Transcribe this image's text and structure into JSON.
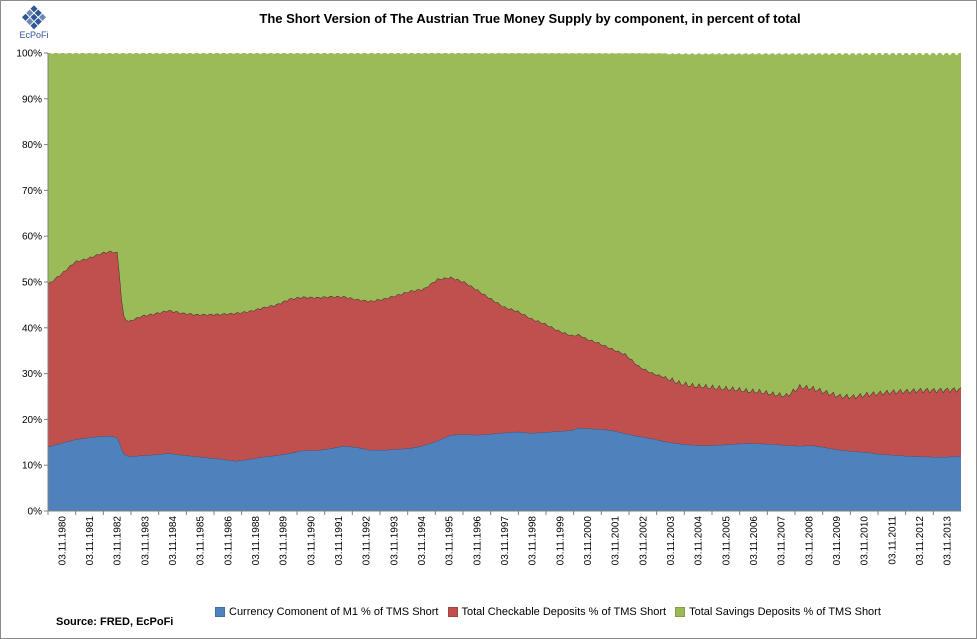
{
  "chart_data": {
    "type": "area",
    "stacked": true,
    "title": "The Short Version of The Austrian True Money Supply by component, in percent of total",
    "xlabel": "",
    "ylabel": "",
    "ylim": [
      0,
      100
    ],
    "y_tick_values": [
      0,
      10,
      20,
      30,
      40,
      50,
      60,
      70,
      80,
      90,
      100
    ],
    "y_tick_labels": [
      "0%",
      "10%",
      "20%",
      "30%",
      "40%",
      "50%",
      "60%",
      "70%",
      "80%",
      "90%",
      "100%"
    ],
    "x_tick_labels": [
      "03.11.1980",
      "03.11.1981",
      "03.11.1982",
      "03.11.1983",
      "03.11.1984",
      "03.11.1985",
      "03.11.1986",
      "03.11.1988",
      "03.11.1989",
      "03.11.1990",
      "03.11.1991",
      "03.11.1992",
      "03.11.1993",
      "03.11.1994",
      "03.11.1995",
      "03.11.1996",
      "03.11.1997",
      "03.11.1998",
      "03.11.1999",
      "03.11.2000",
      "03.11.2001",
      "03.11.2002",
      "03.11.2003",
      "03.11.2004",
      "03.11.2005",
      "03.11.2006",
      "03.11.2007",
      "03.11.2008",
      "03.11.2009",
      "03.11.2010",
      "03.11.2011",
      "03.11.2012",
      "03.11.2013"
    ],
    "x_start": 1980.0,
    "x_end": 2014.0,
    "series": [
      {
        "name": "Currency Comonent of M1 % of TMS Short",
        "color": "#4f81bd",
        "points": [
          [
            1980.0,
            14.0
          ],
          [
            1980.5,
            14.8
          ],
          [
            1981.0,
            15.6
          ],
          [
            1981.5,
            16.0
          ],
          [
            1982.0,
            16.3
          ],
          [
            1982.3,
            16.4
          ],
          [
            1982.6,
            16.0
          ],
          [
            1982.8,
            12.6
          ],
          [
            1983.0,
            11.9
          ],
          [
            1983.5,
            12.1
          ],
          [
            1984.0,
            12.3
          ],
          [
            1984.5,
            12.6
          ],
          [
            1985.0,
            12.2
          ],
          [
            1985.5,
            11.9
          ],
          [
            1986.0,
            11.6
          ],
          [
            1986.5,
            11.3
          ],
          [
            1987.0,
            10.9
          ],
          [
            1987.5,
            11.3
          ],
          [
            1988.0,
            11.8
          ],
          [
            1988.5,
            12.1
          ],
          [
            1989.0,
            12.6
          ],
          [
            1989.5,
            13.2
          ],
          [
            1990.0,
            13.2
          ],
          [
            1990.5,
            13.6
          ],
          [
            1991.0,
            14.2
          ],
          [
            1991.5,
            13.9
          ],
          [
            1992.0,
            13.3
          ],
          [
            1992.5,
            13.3
          ],
          [
            1993.0,
            13.5
          ],
          [
            1993.5,
            13.7
          ],
          [
            1994.0,
            14.3
          ],
          [
            1994.5,
            15.3
          ],
          [
            1995.0,
            16.6
          ],
          [
            1995.5,
            16.7
          ],
          [
            1996.0,
            16.6
          ],
          [
            1996.5,
            16.8
          ],
          [
            1997.0,
            17.1
          ],
          [
            1997.5,
            17.3
          ],
          [
            1998.0,
            17.0
          ],
          [
            1998.5,
            17.2
          ],
          [
            1999.0,
            17.4
          ],
          [
            1999.5,
            17.6
          ],
          [
            1999.8,
            18.2
          ],
          [
            2000.0,
            18.0
          ],
          [
            2000.5,
            17.9
          ],
          [
            2001.0,
            17.6
          ],
          [
            2001.5,
            16.9
          ],
          [
            2002.0,
            16.3
          ],
          [
            2002.5,
            15.8
          ],
          [
            2003.0,
            15.1
          ],
          [
            2003.5,
            14.7
          ],
          [
            2004.0,
            14.4
          ],
          [
            2004.5,
            14.3
          ],
          [
            2005.0,
            14.4
          ],
          [
            2005.5,
            14.6
          ],
          [
            2006.0,
            14.8
          ],
          [
            2006.5,
            14.7
          ],
          [
            2007.0,
            14.6
          ],
          [
            2007.5,
            14.3
          ],
          [
            2008.0,
            14.2
          ],
          [
            2008.5,
            14.3
          ],
          [
            2009.0,
            13.8
          ],
          [
            2009.5,
            13.3
          ],
          [
            2010.0,
            13.0
          ],
          [
            2010.5,
            12.8
          ],
          [
            2011.0,
            12.4
          ],
          [
            2011.5,
            12.2
          ],
          [
            2012.0,
            12.0
          ],
          [
            2012.5,
            11.9
          ],
          [
            2013.0,
            11.8
          ],
          [
            2013.5,
            11.8
          ],
          [
            2014.0,
            12.0
          ]
        ]
      },
      {
        "name": "Total Checkable Deposits % of TMS Short",
        "color": "#c0504d",
        "points": [
          [
            1980.0,
            35.5
          ],
          [
            1980.5,
            37.0
          ],
          [
            1981.0,
            38.8
          ],
          [
            1981.5,
            39.2
          ],
          [
            1982.0,
            40.0
          ],
          [
            1982.3,
            40.3
          ],
          [
            1982.6,
            40.4
          ],
          [
            1982.8,
            30.0
          ],
          [
            1983.0,
            29.5
          ],
          [
            1983.5,
            30.5
          ],
          [
            1984.0,
            30.8
          ],
          [
            1984.5,
            31.2
          ],
          [
            1985.0,
            31.0
          ],
          [
            1985.5,
            31.0
          ],
          [
            1986.0,
            31.3
          ],
          [
            1986.5,
            31.7
          ],
          [
            1987.0,
            32.3
          ],
          [
            1987.5,
            32.3
          ],
          [
            1988.0,
            32.6
          ],
          [
            1988.5,
            32.9
          ],
          [
            1989.0,
            33.7
          ],
          [
            1989.5,
            33.5
          ],
          [
            1990.0,
            33.4
          ],
          [
            1990.5,
            33.2
          ],
          [
            1991.0,
            32.6
          ],
          [
            1991.5,
            32.3
          ],
          [
            1992.0,
            32.5
          ],
          [
            1992.5,
            33.0
          ],
          [
            1993.0,
            33.6
          ],
          [
            1993.5,
            34.3
          ],
          [
            1994.0,
            34.2
          ],
          [
            1994.5,
            35.3
          ],
          [
            1995.0,
            34.4
          ],
          [
            1995.5,
            33.3
          ],
          [
            1996.0,
            31.6
          ],
          [
            1996.5,
            29.5
          ],
          [
            1997.0,
            27.4
          ],
          [
            1997.5,
            26.3
          ],
          [
            1998.0,
            25.0
          ],
          [
            1998.5,
            23.7
          ],
          [
            1999.0,
            22.0
          ],
          [
            1999.5,
            20.7
          ],
          [
            1999.8,
            20.3
          ],
          [
            2000.0,
            19.7
          ],
          [
            2000.5,
            18.8
          ],
          [
            2001.0,
            17.8
          ],
          [
            2001.5,
            17.3
          ],
          [
            2002.0,
            15.3
          ],
          [
            2002.5,
            14.3
          ],
          [
            2003.0,
            14.1
          ],
          [
            2003.5,
            13.3
          ],
          [
            2004.0,
            13.0
          ],
          [
            2004.5,
            12.9
          ],
          [
            2005.0,
            12.5
          ],
          [
            2005.5,
            12.1
          ],
          [
            2006.0,
            11.5
          ],
          [
            2006.5,
            11.4
          ],
          [
            2007.0,
            11.0
          ],
          [
            2007.5,
            10.9
          ],
          [
            2008.0,
            13.0
          ],
          [
            2008.5,
            12.5
          ],
          [
            2009.0,
            12.1
          ],
          [
            2009.5,
            11.8
          ],
          [
            2010.0,
            12.0
          ],
          [
            2010.5,
            12.7
          ],
          [
            2011.0,
            13.4
          ],
          [
            2011.5,
            13.9
          ],
          [
            2012.0,
            14.2
          ],
          [
            2012.5,
            14.5
          ],
          [
            2013.0,
            14.6
          ],
          [
            2013.5,
            14.7
          ],
          [
            2014.0,
            14.6
          ]
        ]
      },
      {
        "name": "Total Savings Deposits % of TMS Short",
        "color": "#9bbb59",
        "points": [
          [
            1980.0,
            50.5
          ],
          [
            1980.5,
            48.2
          ],
          [
            1981.0,
            45.6
          ],
          [
            1981.5,
            44.8
          ],
          [
            1982.0,
            43.7
          ],
          [
            1982.3,
            43.3
          ],
          [
            1982.6,
            43.6
          ],
          [
            1982.8,
            57.4
          ],
          [
            1983.0,
            58.6
          ],
          [
            1983.5,
            57.4
          ],
          [
            1984.0,
            56.9
          ],
          [
            1984.5,
            56.2
          ],
          [
            1985.0,
            56.8
          ],
          [
            1985.5,
            57.1
          ],
          [
            1986.0,
            57.1
          ],
          [
            1986.5,
            57.0
          ],
          [
            1987.0,
            56.8
          ],
          [
            1987.5,
            56.4
          ],
          [
            1988.0,
            55.6
          ],
          [
            1988.5,
            55.0
          ],
          [
            1989.0,
            53.7
          ],
          [
            1989.5,
            53.3
          ],
          [
            1990.0,
            53.4
          ],
          [
            1990.5,
            53.2
          ],
          [
            1991.0,
            53.2
          ],
          [
            1991.5,
            53.8
          ],
          [
            1992.0,
            54.2
          ],
          [
            1992.5,
            53.7
          ],
          [
            1993.0,
            52.9
          ],
          [
            1993.5,
            52.0
          ],
          [
            1994.0,
            51.5
          ],
          [
            1994.5,
            49.4
          ],
          [
            1995.0,
            49.0
          ],
          [
            1995.5,
            50.0
          ],
          [
            1996.0,
            51.8
          ],
          [
            1996.5,
            53.7
          ],
          [
            1997.0,
            55.5
          ],
          [
            1997.5,
            56.4
          ],
          [
            1998.0,
            58.0
          ],
          [
            1998.5,
            59.1
          ],
          [
            1999.0,
            60.6
          ],
          [
            1999.5,
            61.7
          ],
          [
            1999.8,
            61.5
          ],
          [
            2000.0,
            62.3
          ],
          [
            2000.5,
            63.3
          ],
          [
            2001.0,
            64.6
          ],
          [
            2001.5,
            65.8
          ],
          [
            2002.0,
            68.4
          ],
          [
            2002.5,
            69.9
          ],
          [
            2003.0,
            70.8
          ],
          [
            2003.5,
            72.0
          ],
          [
            2004.0,
            72.6
          ],
          [
            2004.5,
            72.8
          ],
          [
            2005.0,
            73.1
          ],
          [
            2005.5,
            73.3
          ],
          [
            2006.0,
            73.7
          ],
          [
            2006.5,
            73.9
          ],
          [
            2007.0,
            74.4
          ],
          [
            2007.5,
            74.8
          ],
          [
            2008.0,
            72.8
          ],
          [
            2008.5,
            73.2
          ],
          [
            2009.0,
            74.1
          ],
          [
            2009.5,
            74.9
          ],
          [
            2010.0,
            75.0
          ],
          [
            2010.5,
            74.5
          ],
          [
            2011.0,
            74.2
          ],
          [
            2011.5,
            73.9
          ],
          [
            2012.0,
            73.8
          ],
          [
            2012.5,
            73.6
          ],
          [
            2013.0,
            73.6
          ],
          [
            2013.5,
            73.5
          ],
          [
            2014.0,
            73.4
          ]
        ]
      }
    ]
  },
  "logo": {
    "text": "EcPoFi"
  },
  "source": {
    "text": "Source: FRED,  EcPoFi"
  }
}
